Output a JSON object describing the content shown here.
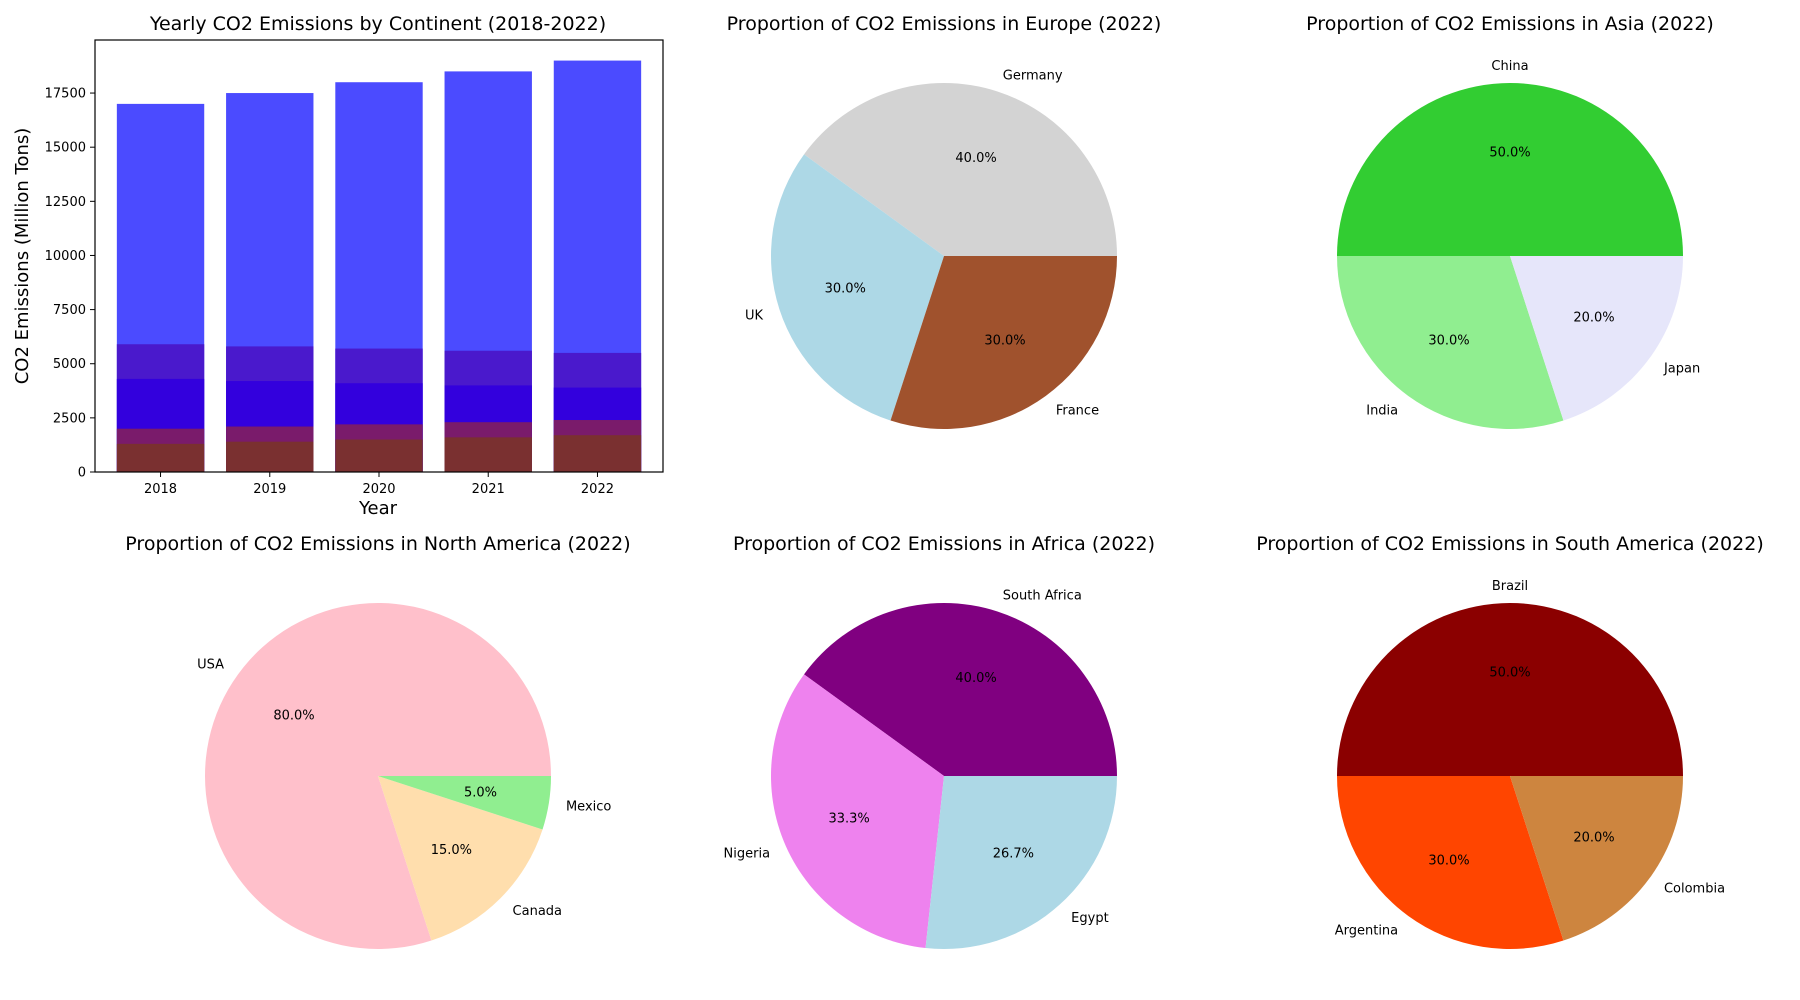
{
  "chart_data": [
    {
      "type": "bar",
      "title": "Yearly CO2 Emissions by Continent (2018-2022)",
      "xlabel": "Year",
      "ylabel": "CO2 Emissions (Million Tons)",
      "categories": [
        "2018",
        "2019",
        "2020",
        "2021",
        "2022"
      ],
      "ylim": [
        0,
        19950
      ],
      "yticks": [
        0,
        2500,
        5000,
        7500,
        10000,
        12500,
        15000,
        17500
      ],
      "overlapping": true,
      "series": [
        {
          "values": [
            17000,
            17500,
            18000,
            18500,
            19000
          ],
          "color": "#4b4bff"
        },
        {
          "values": [
            5900,
            5800,
            5700,
            5600,
            5500
          ],
          "color": "#4a19cc"
        },
        {
          "values": [
            4300,
            4200,
            4100,
            4000,
            3900
          ],
          "color": "#3300dd"
        },
        {
          "values": [
            2000,
            2100,
            2200,
            2300,
            2400
          ],
          "color": "#7a1b6b"
        },
        {
          "values": [
            1300,
            1400,
            1500,
            1600,
            1700
          ],
          "color": "#7a3030"
        }
      ]
    },
    {
      "type": "pie",
      "title": "Proportion of CO2 Emissions in Europe (2022)",
      "labels": [
        "Germany",
        "UK",
        "France"
      ],
      "percents": [
        40.0,
        30.0,
        30.0
      ],
      "pct_labels": [
        "40.0%",
        "30.0%",
        "30.0%"
      ],
      "colors": [
        "#d3d3d3",
        "#add8e6",
        "#a0522d"
      ]
    },
    {
      "type": "pie",
      "title": "Proportion of CO2 Emissions in Asia (2022)",
      "labels": [
        "China",
        "India",
        "Japan"
      ],
      "percents": [
        50.0,
        30.0,
        20.0
      ],
      "pct_labels": [
        "50.0%",
        "30.0%",
        "20.0%"
      ],
      "colors": [
        "#32cd32",
        "#90ee90",
        "#e6e6fa"
      ]
    },
    {
      "type": "pie",
      "title": "Proportion of CO2 Emissions in North America (2022)",
      "labels": [
        "USA",
        "Canada",
        "Mexico"
      ],
      "percents": [
        80.0,
        15.0,
        5.0
      ],
      "pct_labels": [
        "80.0%",
        "15.0%",
        "5.0%"
      ],
      "colors": [
        "#ffc0cb",
        "#ffdead",
        "#90ee90"
      ]
    },
    {
      "type": "pie",
      "title": "Proportion of CO2 Emissions in Africa (2022)",
      "labels": [
        "South Africa",
        "Nigeria",
        "Egypt"
      ],
      "percents": [
        40.0,
        33.3,
        26.7
      ],
      "pct_labels": [
        "40.0%",
        "33.3%",
        "26.7%"
      ],
      "colors": [
        "#800080",
        "#ee82ee",
        "#add8e6"
      ]
    },
    {
      "type": "pie",
      "title": "Proportion of CO2 Emissions in South America (2022)",
      "labels": [
        "Brazil",
        "Argentina",
        "Colombia"
      ],
      "percents": [
        50.0,
        30.0,
        20.0
      ],
      "pct_labels": [
        "50.0%",
        "30.0%",
        "20.0%"
      ],
      "colors": [
        "#8b0000",
        "#ff4500",
        "#cd853f"
      ]
    }
  ]
}
